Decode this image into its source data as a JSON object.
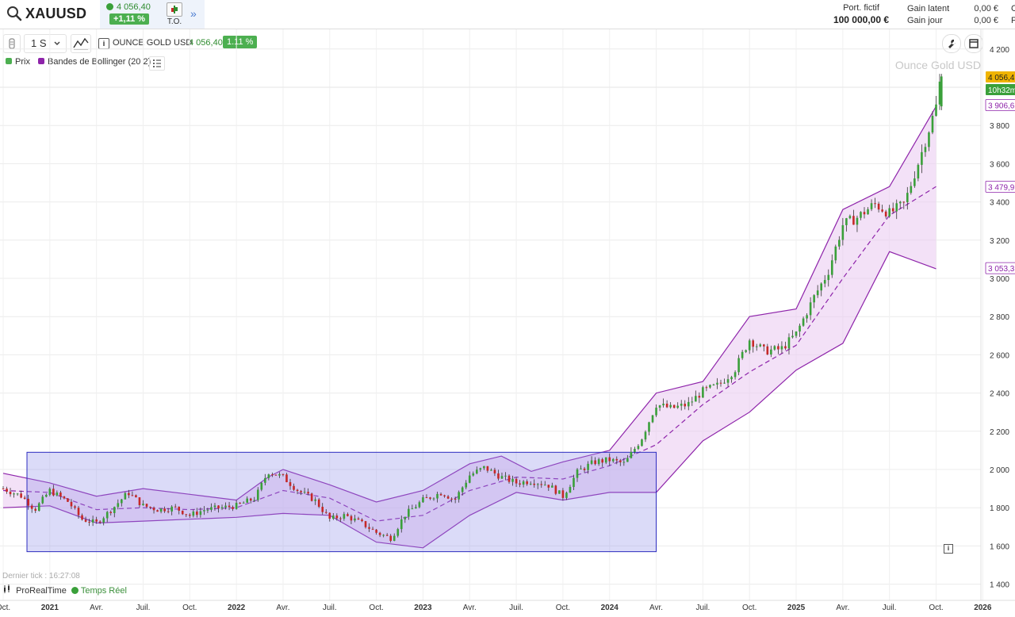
{
  "header": {
    "symbol": "XAUUSD",
    "price": "4 056,40",
    "change": "+1,11 %",
    "to_label": "T.O.",
    "more": "»",
    "port_label": "Port. fictif",
    "port_value": "100 000,00 €",
    "gain_latent_label": "Gain latent",
    "gain_latent_value": "0,00 €",
    "gain_jour_label": "Gain jour",
    "gain_jour_value": "0,00 €",
    "cut1": "C",
    "cut2": "F"
  },
  "toolbar": {
    "timeframe": "1 S",
    "instrument": "OUNCE GOLD USD",
    "price": "4 056,40",
    "change": "1.11 %"
  },
  "legend": {
    "items": [
      {
        "label": "Prix",
        "color": "#4caf50"
      },
      {
        "label": "Bandes de Bollinger (20 2)",
        "color": "#8e24aa"
      }
    ]
  },
  "footer": {
    "last_tick": "Dernier tick : 16:27:08",
    "brand": "ProRealTime",
    "realtime": "Temps Réel"
  },
  "chart_data": {
    "type": "candlestick",
    "title": "Ounce Gold USD",
    "timeframe": "weekly",
    "y_ticks": [
      1400,
      1600,
      1800,
      2000,
      2200,
      2400,
      2600,
      2800,
      3000,
      3200,
      3400,
      3600,
      3800,
      4000,
      4200
    ],
    "y_tick_labels": [
      "1 400",
      "1 600",
      "1 800",
      "2 000",
      "2 200",
      "2 400",
      "2 600",
      "2 800",
      "3 000",
      "3 200",
      "3 400",
      "3 600",
      "3 800",
      "",
      "4 200"
    ],
    "x_ticks": [
      {
        "t": 2020.75,
        "label": "Oct."
      },
      {
        "t": 2021.0,
        "label": "2021"
      },
      {
        "t": 2021.25,
        "label": "Avr."
      },
      {
        "t": 2021.5,
        "label": "Juil."
      },
      {
        "t": 2021.75,
        "label": "Oct."
      },
      {
        "t": 2022.0,
        "label": "2022"
      },
      {
        "t": 2022.25,
        "label": "Avr."
      },
      {
        "t": 2022.5,
        "label": "Juil."
      },
      {
        "t": 2022.75,
        "label": "Oct."
      },
      {
        "t": 2023.0,
        "label": "2023"
      },
      {
        "t": 2023.25,
        "label": "Avr."
      },
      {
        "t": 2023.5,
        "label": "Juil."
      },
      {
        "t": 2023.75,
        "label": "Oct."
      },
      {
        "t": 2024.0,
        "label": "2024"
      },
      {
        "t": 2024.25,
        "label": "Avr."
      },
      {
        "t": 2024.5,
        "label": "Juil."
      },
      {
        "t": 2024.75,
        "label": "Oct."
      },
      {
        "t": 2025.0,
        "label": "2025"
      },
      {
        "t": 2025.25,
        "label": "Avr."
      },
      {
        "t": 2025.5,
        "label": "Juil."
      },
      {
        "t": 2025.75,
        "label": "Oct."
      },
      {
        "t": 2026.0,
        "label": "2026"
      }
    ],
    "close_path": [
      [
        2020.75,
        1900
      ],
      [
        2020.85,
        1860
      ],
      [
        2020.92,
        1790
      ],
      [
        2021.0,
        1890
      ],
      [
        2021.1,
        1830
      ],
      [
        2021.17,
        1740
      ],
      [
        2021.25,
        1720
      ],
      [
        2021.33,
        1790
      ],
      [
        2021.42,
        1880
      ],
      [
        2021.5,
        1810
      ],
      [
        2021.58,
        1790
      ],
      [
        2021.67,
        1800
      ],
      [
        2021.75,
        1760
      ],
      [
        2021.83,
        1790
      ],
      [
        2021.92,
        1800
      ],
      [
        2022.0,
        1810
      ],
      [
        2022.1,
        1850
      ],
      [
        2022.17,
        1990
      ],
      [
        2022.25,
        1960
      ],
      [
        2022.33,
        1890
      ],
      [
        2022.42,
        1840
      ],
      [
        2022.5,
        1740
      ],
      [
        2022.58,
        1760
      ],
      [
        2022.67,
        1720
      ],
      [
        2022.75,
        1670
      ],
      [
        2022.83,
        1640
      ],
      [
        2022.9,
        1760
      ],
      [
        2023.0,
        1840
      ],
      [
        2023.1,
        1880
      ],
      [
        2023.17,
        1840
      ],
      [
        2023.25,
        1970
      ],
      [
        2023.33,
        2010
      ],
      [
        2023.42,
        1960
      ],
      [
        2023.5,
        1930
      ],
      [
        2023.58,
        1940
      ],
      [
        2023.67,
        1920
      ],
      [
        2023.75,
        1860
      ],
      [
        2023.83,
        1990
      ],
      [
        2023.92,
        2040
      ],
      [
        2024.0,
        2050
      ],
      [
        2024.08,
        2030
      ],
      [
        2024.17,
        2160
      ],
      [
        2024.25,
        2340
      ],
      [
        2024.33,
        2320
      ],
      [
        2024.42,
        2340
      ],
      [
        2024.5,
        2410
      ],
      [
        2024.58,
        2440
      ],
      [
        2024.67,
        2520
      ],
      [
        2024.75,
        2680
      ],
      [
        2024.83,
        2620
      ],
      [
        2024.92,
        2630
      ],
      [
        2025.0,
        2710
      ],
      [
        2025.1,
        2910
      ],
      [
        2025.17,
        3030
      ],
      [
        2025.25,
        3280
      ],
      [
        2025.33,
        3320
      ],
      [
        2025.42,
        3390
      ],
      [
        2025.5,
        3340
      ],
      [
        2025.58,
        3390
      ],
      [
        2025.67,
        3650
      ],
      [
        2025.75,
        3900
      ],
      [
        2025.775,
        4056.4
      ]
    ],
    "bollinger_period": 20,
    "bollinger_std": 2,
    "bollinger_upper": [
      [
        2020.75,
        1980
      ],
      [
        2021.0,
        1930
      ],
      [
        2021.25,
        1860
      ],
      [
        2021.5,
        1900
      ],
      [
        2021.75,
        1870
      ],
      [
        2022.0,
        1840
      ],
      [
        2022.17,
        1960
      ],
      [
        2022.25,
        2000
      ],
      [
        2022.5,
        1920
      ],
      [
        2022.75,
        1830
      ],
      [
        2023.0,
        1890
      ],
      [
        2023.25,
        2030
      ],
      [
        2023.42,
        2070
      ],
      [
        2023.58,
        1990
      ],
      [
        2023.75,
        2040
      ],
      [
        2024.0,
        2100
      ],
      [
        2024.25,
        2400
      ],
      [
        2024.5,
        2460
      ],
      [
        2024.75,
        2800
      ],
      [
        2025.0,
        2840
      ],
      [
        2025.25,
        3360
      ],
      [
        2025.5,
        3480
      ],
      [
        2025.75,
        3900
      ]
    ],
    "bollinger_middle": [
      [
        2020.75,
        1890
      ],
      [
        2021.0,
        1880
      ],
      [
        2021.25,
        1790
      ],
      [
        2021.5,
        1800
      ],
      [
        2021.75,
        1790
      ],
      [
        2022.0,
        1800
      ],
      [
        2022.25,
        1890
      ],
      [
        2022.5,
        1850
      ],
      [
        2022.75,
        1730
      ],
      [
        2023.0,
        1760
      ],
      [
        2023.25,
        1890
      ],
      [
        2023.5,
        1960
      ],
      [
        2023.75,
        1950
      ],
      [
        2024.0,
        2020
      ],
      [
        2024.25,
        2130
      ],
      [
        2024.5,
        2340
      ],
      [
        2024.75,
        2510
      ],
      [
        2025.0,
        2650
      ],
      [
        2025.25,
        3000
      ],
      [
        2025.5,
        3330
      ],
      [
        2025.75,
        3480
      ]
    ],
    "bollinger_lower": [
      [
        2020.75,
        1800
      ],
      [
        2021.0,
        1810
      ],
      [
        2021.25,
        1720
      ],
      [
        2021.5,
        1730
      ],
      [
        2021.75,
        1740
      ],
      [
        2022.0,
        1750
      ],
      [
        2022.25,
        1770
      ],
      [
        2022.5,
        1760
      ],
      [
        2022.75,
        1620
      ],
      [
        2023.0,
        1590
      ],
      [
        2023.25,
        1760
      ],
      [
        2023.5,
        1880
      ],
      [
        2023.75,
        1840
      ],
      [
        2024.0,
        1880
      ],
      [
        2024.25,
        1880
      ],
      [
        2024.5,
        2150
      ],
      [
        2024.75,
        2300
      ],
      [
        2025.0,
        2520
      ],
      [
        2025.25,
        2660
      ],
      [
        2025.5,
        3140
      ],
      [
        2025.75,
        3050
      ]
    ],
    "highlight_box": {
      "t_start": 2020.75,
      "t_end": 2024.25,
      "y_low": 1570,
      "y_high": 2090
    },
    "price_labels": [
      {
        "value": 4056.4,
        "text": "4 056,4",
        "color": "#f0b400"
      },
      {
        "value": 3990,
        "text": "10h32m",
        "color": "#3aa03a"
      },
      {
        "value": 3906.6,
        "text": "3 906,6",
        "color": "#8e24aa"
      },
      {
        "value": 3479.9,
        "text": "3 479,9",
        "color": "#8e24aa"
      },
      {
        "value": 3053.3,
        "text": "3 053,3",
        "color": "#8e24aa"
      }
    ],
    "up_color": "#3aa03a",
    "down_color": "#c62828",
    "band_color": "#8e24aa"
  }
}
